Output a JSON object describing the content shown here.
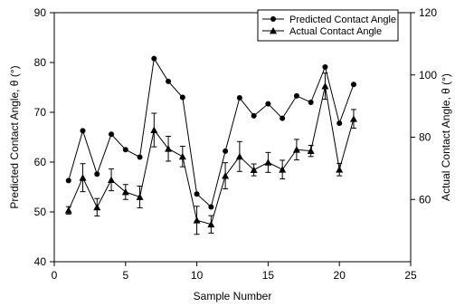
{
  "chart_data": {
    "type": "line",
    "x_axis": {
      "label": "Sample Number",
      "range": [
        0,
        25
      ],
      "ticks": [
        0,
        5,
        10,
        15,
        20,
        25
      ]
    },
    "y_axis_left": {
      "label": "Predicted Contact Angle, θ (°)",
      "range": [
        40,
        90
      ],
      "ticks": [
        40,
        50,
        60,
        70,
        80,
        90
      ]
    },
    "y_axis_right": {
      "label": "Actual Contact Angle, θ (°)",
      "range": [
        40,
        120
      ],
      "ticks": [
        60,
        80,
        100,
        120
      ]
    },
    "legend": {
      "placement": "top-right"
    },
    "series": [
      {
        "name": "Predicted Contact Angle",
        "marker": "circle",
        "axis": "left",
        "x": [
          1,
          2,
          3,
          4,
          5,
          6,
          7,
          8,
          9,
          10,
          11,
          12,
          13,
          14,
          15,
          16,
          17,
          18,
          19,
          20,
          21
        ],
        "y": [
          56.3,
          66.3,
          57.6,
          65.6,
          62.5,
          61.0,
          80.8,
          76.2,
          73.0,
          53.6,
          51.0,
          62.2,
          72.9,
          69.3,
          71.7,
          68.8,
          73.3,
          72.0,
          79.1,
          67.8,
          75.6
        ]
      },
      {
        "name": "Actual Contact Angle",
        "marker": "triangle",
        "axis": "right",
        "x": [
          1,
          2,
          3,
          4,
          5,
          6,
          7,
          8,
          9,
          10,
          11,
          12,
          13,
          14,
          15,
          16,
          17,
          18,
          19,
          20,
          21
        ],
        "y": [
          56.5,
          67.0,
          57.5,
          66.3,
          62.4,
          60.8,
          82.3,
          76.3,
          73.8,
          53.3,
          52.0,
          67.6,
          73.8,
          69.5,
          71.9,
          69.6,
          76.0,
          75.6,
          96.4,
          69.6,
          85.9
        ],
        "error": [
          1.2,
          4.5,
          2.8,
          3.5,
          2.4,
          3.5,
          5.4,
          4.0,
          3.3,
          4.5,
          2.8,
          4.2,
          4.8,
          1.9,
          3.2,
          3.0,
          3.3,
          1.8,
          4.2,
          2.0,
          3.0
        ]
      }
    ]
  }
}
